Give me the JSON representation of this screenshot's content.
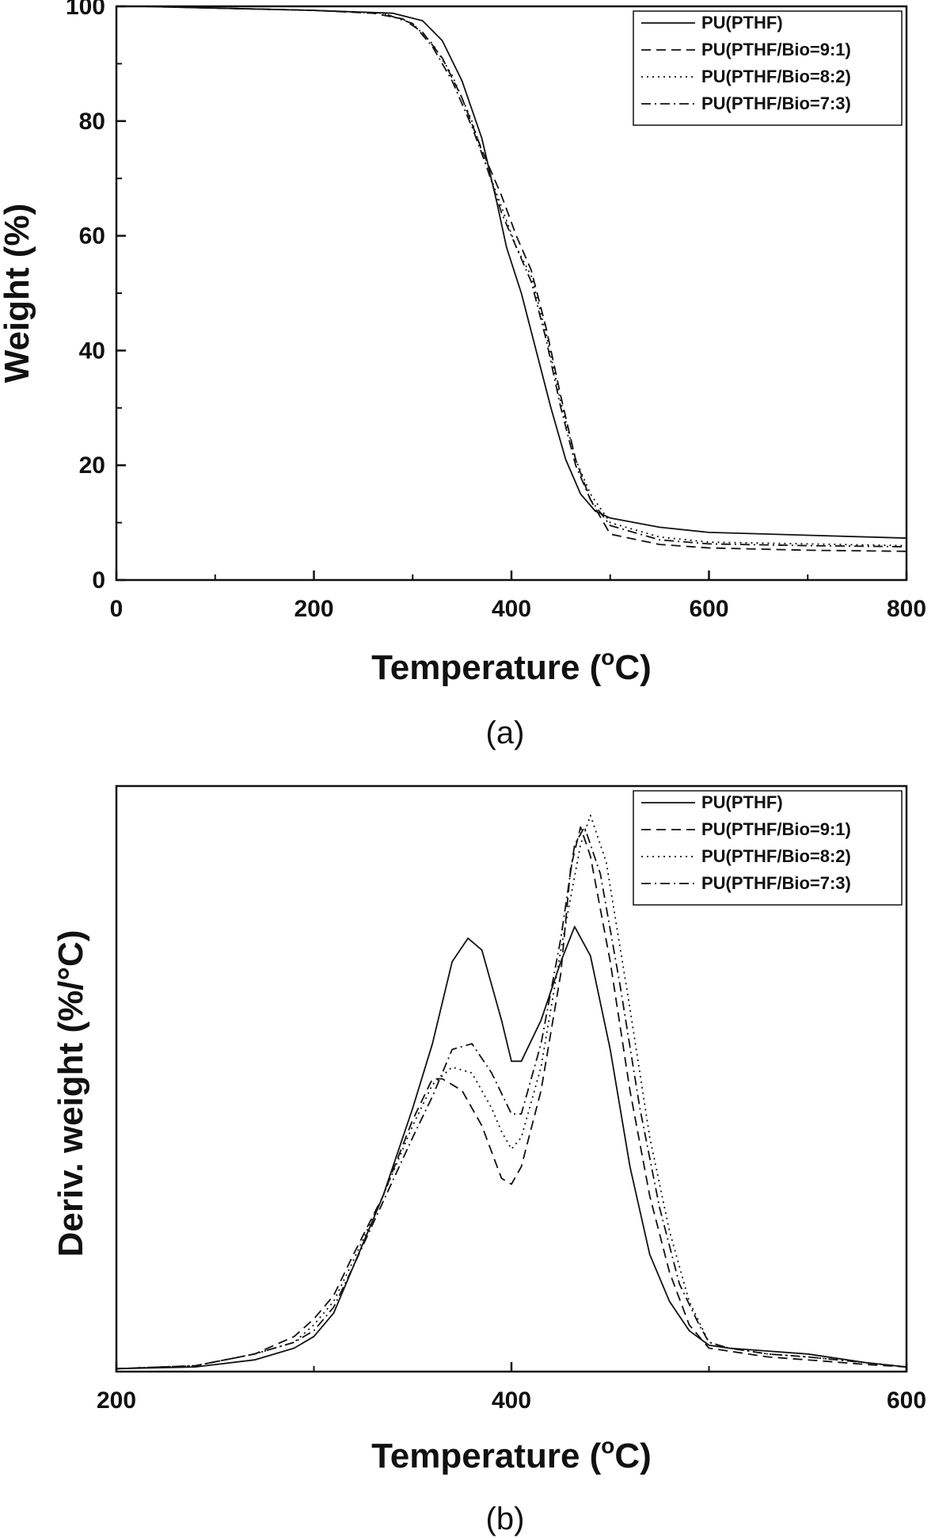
{
  "figure_labels": [
    "(a)",
    "(b)"
  ],
  "chart_data": [
    {
      "type": "line",
      "panel_label": "(a)",
      "xlabel_main": "Temperature (",
      "xlabel_sup": "o",
      "xlabel_end": "C)",
      "ylabel": "Weight (%)",
      "xlim": [
        0,
        800
      ],
      "ylim": [
        0,
        100
      ],
      "xticks": [
        0,
        200,
        400,
        600,
        800
      ],
      "yticks": [
        0,
        20,
        40,
        60,
        80,
        100
      ],
      "xtick_labels": [
        "0",
        "200",
        "400",
        "600",
        "800"
      ],
      "ytick_labels": [
        "0",
        "20",
        "40",
        "60",
        "80",
        "100"
      ],
      "grid": false,
      "legend_position": "top-right",
      "series": [
        {
          "name": "PU(PTHF)",
          "style": "solid",
          "points": [
            [
              25,
              100
            ],
            [
              100,
              99.7
            ],
            [
              200,
              99.3
            ],
            [
              280,
              98.8
            ],
            [
              310,
              97.5
            ],
            [
              330,
              94
            ],
            [
              350,
              87
            ],
            [
              370,
              77
            ],
            [
              385,
              66
            ],
            [
              395,
              58
            ],
            [
              410,
              50
            ],
            [
              425,
              40
            ],
            [
              440,
              30
            ],
            [
              455,
              21
            ],
            [
              470,
              15
            ],
            [
              485,
              12
            ],
            [
              500,
              10.8
            ],
            [
              550,
              9.2
            ],
            [
              600,
              8.3
            ],
            [
              700,
              7.8
            ],
            [
              800,
              7.3
            ]
          ]
        },
        {
          "name": "PU(PTHF/Bio=9:1)",
          "style": "dashed",
          "points": [
            [
              25,
              100
            ],
            [
              100,
              99.7
            ],
            [
              200,
              99.3
            ],
            [
              260,
              98.8
            ],
            [
              290,
              97.8
            ],
            [
              310,
              95.5
            ],
            [
              330,
              91
            ],
            [
              350,
              84
            ],
            [
              370,
              75
            ],
            [
              390,
              67
            ],
            [
              405,
              60
            ],
            [
              420,
              54
            ],
            [
              435,
              44
            ],
            [
              450,
              32
            ],
            [
              465,
              21
            ],
            [
              480,
              14
            ],
            [
              500,
              8
            ],
            [
              550,
              6.2
            ],
            [
              600,
              5.6
            ],
            [
              700,
              5.2
            ],
            [
              800,
              5
            ]
          ]
        },
        {
          "name": "PU(PTHF/Bio=8:2)",
          "style": "dotted",
          "points": [
            [
              25,
              100
            ],
            [
              100,
              99.7
            ],
            [
              200,
              99.3
            ],
            [
              270,
              98.8
            ],
            [
              300,
              97
            ],
            [
              320,
              93.5
            ],
            [
              340,
              88
            ],
            [
              360,
              80
            ],
            [
              375,
              72
            ],
            [
              390,
              65
            ],
            [
              405,
              58
            ],
            [
              420,
              53
            ],
            [
              435,
              43
            ],
            [
              450,
              31
            ],
            [
              465,
              21
            ],
            [
              480,
              15
            ],
            [
              500,
              10
            ],
            [
              550,
              7.5
            ],
            [
              600,
              6.6
            ],
            [
              700,
              6.3
            ],
            [
              800,
              6
            ]
          ]
        },
        {
          "name": "PU(PTHF/Bio=7:3)",
          "style": "dashdot",
          "points": [
            [
              25,
              100
            ],
            [
              100,
              99.7
            ],
            [
              200,
              99.3
            ],
            [
              270,
              98.8
            ],
            [
              300,
              97
            ],
            [
              320,
              93
            ],
            [
              340,
              87
            ],
            [
              360,
              79
            ],
            [
              375,
              72
            ],
            [
              390,
              64
            ],
            [
              405,
              58
            ],
            [
              420,
              52
            ],
            [
              435,
              42
            ],
            [
              450,
              30
            ],
            [
              465,
              20
            ],
            [
              480,
              14
            ],
            [
              500,
              9.5
            ],
            [
              550,
              7
            ],
            [
              600,
              6.3
            ],
            [
              700,
              6
            ],
            [
              800,
              5.8
            ]
          ]
        }
      ]
    },
    {
      "type": "line",
      "panel_label": "(b)",
      "xlabel_main": "Temperature (",
      "xlabel_sup": "o",
      "xlabel_end": "C)",
      "ylabel": "Deriv. weight (%/°C)",
      "xlim": [
        200,
        600
      ],
      "ylim": [
        0,
        100
      ],
      "xticks": [
        200,
        400,
        600
      ],
      "xtick_labels": [
        "200",
        "400",
        "600"
      ],
      "grid": false,
      "legend_position": "top-right",
      "y_units": "relative (arbitrary)",
      "series": [
        {
          "name": "PU(PTHF)",
          "style": "solid",
          "points": [
            [
              200,
              0.5
            ],
            [
              240,
              0.8
            ],
            [
              270,
              2
            ],
            [
              290,
              4
            ],
            [
              300,
              6
            ],
            [
              310,
              10
            ],
            [
              320,
              18
            ],
            [
              335,
              30
            ],
            [
              350,
              45
            ],
            [
              360,
              56
            ],
            [
              370,
              70
            ],
            [
              378,
              74
            ],
            [
              385,
              72
            ],
            [
              395,
              60
            ],
            [
              400,
              53
            ],
            [
              405,
              53
            ],
            [
              415,
              60
            ],
            [
              425,
              70
            ],
            [
              432,
              76
            ],
            [
              440,
              71
            ],
            [
              450,
              55
            ],
            [
              460,
              35
            ],
            [
              470,
              20
            ],
            [
              480,
              12
            ],
            [
              490,
              7
            ],
            [
              500,
              4.5
            ],
            [
              510,
              4
            ],
            [
              530,
              3.5
            ],
            [
              550,
              3
            ],
            [
              580,
              1.5
            ],
            [
              600,
              0.8
            ]
          ]
        },
        {
          "name": "PU(PTHF/Bio=9:1)",
          "style": "dashed",
          "points": [
            [
              200,
              0.5
            ],
            [
              240,
              1
            ],
            [
              270,
              3
            ],
            [
              290,
              6
            ],
            [
              300,
              9
            ],
            [
              310,
              13
            ],
            [
              320,
              20
            ],
            [
              335,
              30
            ],
            [
              350,
              43
            ],
            [
              360,
              50
            ],
            [
              365,
              50
            ],
            [
              375,
              48
            ],
            [
              385,
              42
            ],
            [
              395,
              33
            ],
            [
              400,
              32
            ],
            [
              405,
              35
            ],
            [
              415,
              48
            ],
            [
              425,
              68
            ],
            [
              430,
              86
            ],
            [
              435,
              93
            ],
            [
              440,
              88
            ],
            [
              450,
              70
            ],
            [
              460,
              48
            ],
            [
              470,
              30
            ],
            [
              480,
              17
            ],
            [
              490,
              8
            ],
            [
              500,
              4
            ],
            [
              510,
              3.5
            ],
            [
              530,
              2.5
            ],
            [
              550,
              2
            ],
            [
              580,
              1.2
            ],
            [
              600,
              0.8
            ]
          ]
        },
        {
          "name": "PU(PTHF/Bio=8:2)",
          "style": "dotted",
          "points": [
            [
              200,
              0.5
            ],
            [
              240,
              1
            ],
            [
              270,
              3
            ],
            [
              290,
              5
            ],
            [
              300,
              8
            ],
            [
              310,
              12
            ],
            [
              320,
              19
            ],
            [
              335,
              30
            ],
            [
              350,
              42
            ],
            [
              360,
              49
            ],
            [
              370,
              52
            ],
            [
              380,
              51
            ],
            [
              390,
              45
            ],
            [
              395,
              41
            ],
            [
              400,
              38
            ],
            [
              405,
              40
            ],
            [
              415,
              52
            ],
            [
              425,
              72
            ],
            [
              435,
              90
            ],
            [
              440,
              95
            ],
            [
              448,
              87
            ],
            [
              460,
              62
            ],
            [
              470,
              40
            ],
            [
              480,
              24
            ],
            [
              490,
              12
            ],
            [
              500,
              5
            ],
            [
              510,
              4
            ],
            [
              530,
              3
            ],
            [
              550,
              2.5
            ],
            [
              580,
              1.5
            ],
            [
              600,
              0.8
            ]
          ]
        },
        {
          "name": "PU(PTHF/Bio=7:3)",
          "style": "dashdot",
          "points": [
            [
              200,
              0.5
            ],
            [
              240,
              1
            ],
            [
              270,
              3
            ],
            [
              290,
              5
            ],
            [
              300,
              7
            ],
            [
              310,
              11
            ],
            [
              320,
              18
            ],
            [
              335,
              29
            ],
            [
              350,
              40
            ],
            [
              360,
              47
            ],
            [
              370,
              55
            ],
            [
              380,
              56
            ],
            [
              390,
              51
            ],
            [
              400,
              44
            ],
            [
              405,
              44
            ],
            [
              415,
              56
            ],
            [
              425,
              74
            ],
            [
              432,
              90
            ],
            [
              437,
              93
            ],
            [
              445,
              85
            ],
            [
              455,
              66
            ],
            [
              465,
              45
            ],
            [
              475,
              28
            ],
            [
              485,
              15
            ],
            [
              495,
              8
            ],
            [
              500,
              5
            ],
            [
              510,
              4
            ],
            [
              530,
              3
            ],
            [
              550,
              2.5
            ],
            [
              580,
              1.5
            ],
            [
              600,
              0.8
            ]
          ]
        }
      ]
    }
  ]
}
